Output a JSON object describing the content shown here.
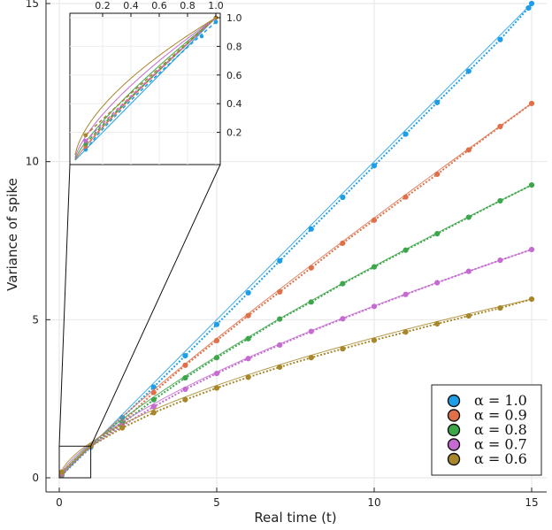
{
  "chart_data": {
    "type": "line",
    "xlabel": "Real time (t)",
    "ylabel": "Variance of spike",
    "xlim": [
      0,
      15
    ],
    "ylim": [
      0,
      15
    ],
    "xticks": [
      0,
      5,
      10,
      15
    ],
    "yticks": [
      0,
      5,
      10,
      15
    ],
    "xtick_labels": [
      "0",
      "5",
      "10",
      "15"
    ],
    "ytick_labels": [
      "0",
      "5",
      "10",
      "15"
    ],
    "grid": true,
    "legend_position": "bottom-right",
    "colors": [
      "#1f9ee8",
      "#e0704a",
      "#3da64a",
      "#c56ad1",
      "#a8872a"
    ],
    "series": [
      {
        "name": "α = 1.0",
        "alpha": 1.0,
        "x": [
          0.08,
          1,
          2,
          3,
          4,
          5,
          6,
          7,
          8,
          9,
          10,
          11,
          12,
          13,
          14,
          14.9,
          15
        ],
        "values": [
          0.08,
          0.97,
          1.9,
          2.87,
          3.86,
          4.85,
          5.85,
          6.86,
          7.87,
          8.87,
          9.87,
          10.87,
          11.87,
          12.86,
          13.86,
          14.86,
          15.0
        ]
      },
      {
        "name": "α = 0.9",
        "alpha": 0.9,
        "x": [
          0.08,
          1,
          2,
          3,
          4,
          5,
          6,
          7,
          8,
          9,
          10,
          11,
          12,
          13,
          14,
          15
        ],
        "values": [
          0.1,
          1.0,
          1.76,
          2.7,
          3.56,
          4.34,
          5.13,
          5.88,
          6.64,
          7.42,
          8.15,
          8.88,
          9.6,
          10.37,
          11.11,
          11.84
        ]
      },
      {
        "name": "α = 0.8",
        "alpha": 0.8,
        "x": [
          0.08,
          1,
          2,
          3,
          4,
          5,
          6,
          7,
          8,
          9,
          10,
          11,
          12,
          13,
          14,
          15
        ],
        "values": [
          0.12,
          1.0,
          1.72,
          2.47,
          3.16,
          3.8,
          4.4,
          5.02,
          5.56,
          6.14,
          6.67,
          7.2,
          7.72,
          8.24,
          8.76,
          9.26
        ]
      },
      {
        "name": "α = 0.7",
        "alpha": 0.7,
        "x": [
          0.08,
          1,
          2,
          3,
          4,
          5,
          6,
          7,
          8,
          9,
          10,
          11,
          12,
          13,
          14,
          15
        ],
        "values": [
          0.14,
          1.0,
          1.64,
          2.25,
          2.8,
          3.3,
          3.77,
          4.2,
          4.63,
          5.03,
          5.42,
          5.8,
          6.17,
          6.53,
          6.88,
          7.22
        ]
      },
      {
        "name": "α = 0.6",
        "alpha": 0.6,
        "x": [
          0.08,
          1,
          2,
          3,
          4,
          5,
          6,
          7,
          8,
          9,
          10,
          11,
          12,
          13,
          14,
          15
        ],
        "values": [
          0.18,
          1.0,
          1.58,
          2.06,
          2.47,
          2.84,
          3.18,
          3.5,
          3.8,
          4.08,
          4.35,
          4.61,
          4.87,
          5.12,
          5.37,
          5.65
        ]
      }
    ],
    "inset": {
      "xlim": [
        0,
        1
      ],
      "ylim": [
        0,
        1
      ],
      "xticks": [
        0.2,
        0.4,
        0.6,
        0.8,
        1.0
      ],
      "yticks": [
        0.2,
        0.4,
        0.6,
        0.8,
        1.0
      ],
      "xtick_labels": [
        "0.2",
        "0.4",
        "0.6",
        "0.8",
        "1.0"
      ],
      "ytick_labels": [
        "0.2",
        "0.4",
        "0.6",
        "0.8",
        "1.0"
      ]
    }
  }
}
